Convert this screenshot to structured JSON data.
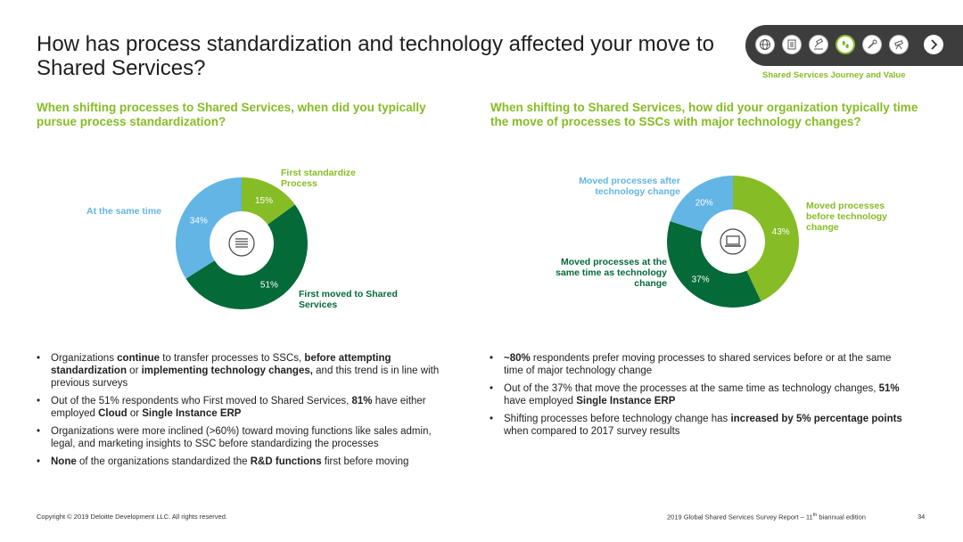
{
  "title": "How has process standardization and technology affected your move to Shared Services?",
  "nav": {
    "caption": "Shared Services Journey and Value",
    "icons": [
      "globe-icon",
      "document-icon",
      "gavel-icon",
      "footprints-icon",
      "wrench-icon",
      "telescope-icon"
    ],
    "next": "next-arrow-icon"
  },
  "left": {
    "question": "When shifting processes to Shared Services, when did you typically pursue process standardization?",
    "labels": {
      "first_standardize": "First standardize Process",
      "same_time": "At the same time",
      "first_moved": "First moved to Shared Services"
    },
    "center_icon": "list-icon",
    "bullets": [
      [
        {
          "t": "Organizations "
        },
        {
          "t": "continue",
          "b": true
        },
        {
          "t": " to transfer processes to SSCs, "
        },
        {
          "t": "before attempting standardization",
          "b": true
        },
        {
          "t": " or "
        },
        {
          "t": "implementing technology changes,",
          "b": true
        },
        {
          "t": " and this trend is in line with previous surveys"
        }
      ],
      [
        {
          "t": "Out of the 51% respondents who First moved to Shared Services, "
        },
        {
          "t": "81%",
          "b": true
        },
        {
          "t": " have either employed "
        },
        {
          "t": "Cloud",
          "b": true
        },
        {
          "t": " or "
        },
        {
          "t": "Single Instance ERP",
          "b": true
        }
      ],
      [
        {
          "t": "Organizations were more inclined (>60%) toward moving functions like sales admin, legal, and marketing insights to SSC before standardizing the processes"
        }
      ],
      [
        {
          "t": "None",
          "b": true
        },
        {
          "t": " of the organizations standardized the "
        },
        {
          "t": "R&D functions",
          "b": true
        },
        {
          "t": " first before moving"
        }
      ]
    ]
  },
  "right": {
    "question": "When shifting to Shared Services, how did your organization typically time the move of processes to SSCs with major technology changes?",
    "labels": {
      "after": "Moved processes after technology change",
      "before": "Moved processes before technology change",
      "same": "Moved processes at the same time as technology change"
    },
    "center_icon": "laptop-icon",
    "bullets": [
      [
        {
          "t": "~80%",
          "b": true
        },
        {
          "t": " respondents prefer moving processes to shared services before or at the same time of major technology change"
        }
      ],
      [
        {
          "t": "Out of the 37% that move the processes at the same time as technology changes, "
        },
        {
          "t": "51%",
          "b": true
        },
        {
          "t": " have employed "
        },
        {
          "t": "Single Instance ERP",
          "b": true
        }
      ],
      [
        {
          "t": "Shifting processes before technology change has "
        },
        {
          "t": "increased by 5% percentage points",
          "b": true
        },
        {
          "t": " when compared to 2017 survey results"
        }
      ]
    ]
  },
  "chart_data": [
    {
      "type": "pie",
      "donut": true,
      "categories": [
        "First standardize Process",
        "First moved to Shared Services",
        "At the same time"
      ],
      "values": [
        15,
        51,
        34
      ],
      "value_labels": [
        "15%",
        "51%",
        "34%"
      ],
      "colors": [
        "#86bc25",
        "#046a38",
        "#62b5e5"
      ]
    },
    {
      "type": "pie",
      "donut": true,
      "categories": [
        "Moved processes before technology change",
        "Moved processes at the same time as technology change",
        "Moved processes after technology change"
      ],
      "values": [
        43,
        37,
        20
      ],
      "value_labels": [
        "43%",
        "37%",
        "20%"
      ],
      "colors": [
        "#86bc25",
        "#046a38",
        "#62b5e5"
      ]
    }
  ],
  "footer": {
    "left": "Copyright © 2019 Deloitte Development LLC. All rights reserved.",
    "right_pre": "2019 Global Shared Services Survey Report – 11",
    "right_sup": "th",
    "right_post": " biannual edition",
    "page": "34"
  }
}
